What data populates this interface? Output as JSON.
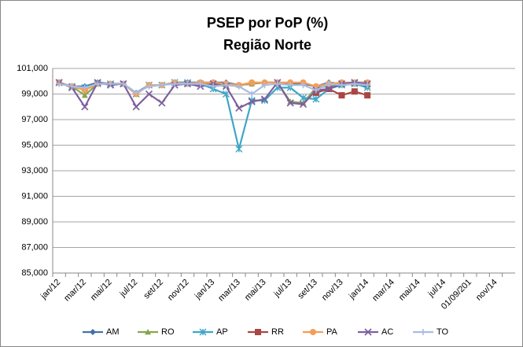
{
  "chart_data": {
    "type": "line",
    "title": "PSEP por PoP (%)",
    "subtitle": "Região Norte",
    "categories": [
      "jan/12",
      null,
      "mar/12",
      null,
      "mai/12",
      null,
      "jul/12",
      null,
      "set/12",
      null,
      "nov/12",
      null,
      "jan/13",
      null,
      "mar/13",
      null,
      "mai/13",
      null,
      "jul/13",
      null,
      "set/13",
      null,
      "nov/13",
      null,
      "jan/14",
      null,
      "mar/14",
      null,
      "mai/14",
      null,
      "jul/14",
      null,
      "01/09/201",
      null,
      "nov/14",
      null
    ],
    "ylim": [
      85,
      101
    ],
    "yticks": [
      {
        "value": 85,
        "label": "85,000"
      },
      {
        "value": 87,
        "label": "87,000"
      },
      {
        "value": 89,
        "label": "89,000"
      },
      {
        "value": 91,
        "label": "91,000"
      },
      {
        "value": 93,
        "label": "93,000"
      },
      {
        "value": 95,
        "label": "95,000"
      },
      {
        "value": 97,
        "label": "97,000"
      },
      {
        "value": 99,
        "label": "99,000"
      },
      {
        "value": 101,
        "label": "101,000"
      }
    ],
    "grid": true,
    "legend": "bottom",
    "series": [
      {
        "name": "AM",
        "color": "#4572A7",
        "marker": "diamond",
        "values": [
          99.9,
          99.6,
          99.6,
          99.9,
          99.8,
          99.8,
          99.1,
          99.7,
          99.7,
          99.9,
          99.9,
          99.9,
          99.9,
          99.9,
          99.7,
          99.8,
          99.9,
          99.9,
          99.8,
          99.8,
          99.6,
          99.9,
          99.8,
          99.9,
          99.9,
          null,
          null,
          null,
          null,
          null,
          null,
          null,
          null,
          null,
          null,
          null
        ]
      },
      {
        "name": "RO",
        "color": "#89A54E",
        "marker": "triangle",
        "values": [
          99.9,
          99.6,
          98.9,
          99.8,
          99.8,
          99.8,
          99.0,
          99.7,
          99.7,
          99.9,
          99.9,
          99.8,
          99.8,
          99.7,
          99.7,
          99.8,
          99.9,
          99.9,
          98.4,
          98.3,
          99.5,
          99.6,
          99.7,
          99.8,
          99.6,
          null,
          null,
          null,
          null,
          null,
          null,
          null,
          null,
          null,
          null,
          null
        ]
      },
      {
        "name": "AP",
        "color": "#3DA7C6",
        "marker": "star",
        "values": [
          99.9,
          99.6,
          99.5,
          99.8,
          99.8,
          99.8,
          99.0,
          99.7,
          99.7,
          99.9,
          99.9,
          99.8,
          99.4,
          99.0,
          94.7,
          98.5,
          98.5,
          99.5,
          99.5,
          98.7,
          98.6,
          99.4,
          99.7,
          99.8,
          99.5,
          null,
          null,
          null,
          null,
          null,
          null,
          null,
          null,
          null,
          null,
          null
        ]
      },
      {
        "name": "RR",
        "color": "#AA4643",
        "marker": "square",
        "values": [
          null,
          null,
          null,
          null,
          null,
          null,
          null,
          null,
          null,
          null,
          null,
          null,
          null,
          null,
          null,
          null,
          null,
          null,
          null,
          null,
          99.1,
          99.4,
          98.9,
          99.2,
          98.9,
          null,
          null,
          null,
          null,
          null,
          null,
          null,
          null,
          null,
          null,
          null
        ]
      },
      {
        "name": "PA",
        "color": "#F59D56",
        "marker": "circle",
        "values": [
          99.9,
          99.6,
          99.3,
          99.8,
          99.8,
          99.8,
          99.0,
          99.7,
          99.7,
          99.9,
          99.8,
          99.9,
          99.9,
          99.8,
          99.7,
          99.9,
          99.9,
          99.9,
          99.9,
          99.9,
          99.6,
          99.8,
          99.9,
          99.9,
          99.9,
          null,
          null,
          null,
          null,
          null,
          null,
          null,
          null,
          null,
          null,
          null
        ]
      },
      {
        "name": "AC",
        "color": "#7D5FA0",
        "marker": "x",
        "values": [
          99.9,
          99.5,
          98.0,
          99.9,
          99.7,
          99.8,
          98.0,
          99.0,
          98.3,
          99.7,
          99.8,
          99.6,
          99.8,
          99.6,
          97.9,
          98.4,
          98.6,
          99.9,
          98.3,
          98.2,
          99.3,
          99.4,
          99.8,
          99.9,
          99.8,
          null,
          null,
          null,
          null,
          null,
          null,
          null,
          null,
          null,
          null,
          null
        ]
      },
      {
        "name": "TO",
        "color": "#A9BCE0",
        "marker": "plus",
        "values": [
          99.8,
          99.6,
          99.5,
          99.8,
          99.8,
          99.8,
          99.1,
          99.6,
          99.7,
          99.8,
          99.8,
          99.8,
          99.6,
          99.7,
          99.6,
          99.0,
          99.7,
          99.8,
          99.7,
          99.7,
          99.3,
          99.8,
          99.7,
          99.8,
          99.7,
          null,
          null,
          null,
          null,
          null,
          null,
          null,
          null,
          null,
          null,
          null
        ]
      }
    ]
  }
}
